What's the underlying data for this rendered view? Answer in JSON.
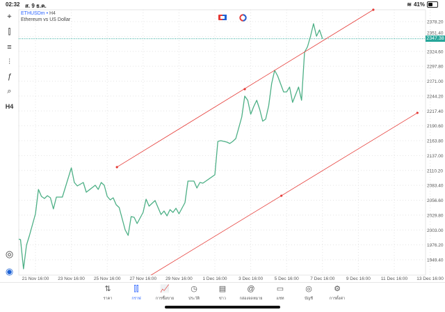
{
  "status_bar": {
    "time": "02:32",
    "date": "ส. 9 ธ.ค.",
    "battery": "41%",
    "battery_level": 0.41
  },
  "legend": {
    "symbol": "ETHUSDm",
    "separator": "•",
    "timeframe": "H4",
    "description": "Ethereum vs US Dollar"
  },
  "toolbar": {
    "items": [
      {
        "icon": "crosshair-icon",
        "glyph": "⌖"
      },
      {
        "icon": "candlestick-icon",
        "glyph": "⫿"
      },
      {
        "icon": "indicators-icon",
        "glyph": "≡"
      },
      {
        "icon": "settings-sliders-icon",
        "glyph": "⫶"
      },
      {
        "icon": "function-icon",
        "glyph": "ƒ"
      },
      {
        "icon": "objects-icon",
        "glyph": "⌕"
      },
      {
        "icon": "timeframe-icon",
        "glyph": "H4"
      }
    ],
    "bottom_items": [
      {
        "icon": "trade-zoom-icon",
        "glyph": "◎"
      },
      {
        "icon": "app-logo-icon",
        "glyph": "◉"
      }
    ]
  },
  "colors": {
    "line": "#4caf85",
    "trendline": "#e53935",
    "accent": "#2962ff",
    "price_tag": "#26a69a",
    "grid": "#e4e4e4"
  },
  "chart_data": {
    "type": "line",
    "symbol": "ETHUSDm",
    "timeframe": "H4",
    "ylim": [
      1930,
      2395
    ],
    "grid": true,
    "y_ticks": [
      "2378.20",
      "2351.40",
      "2324.60",
      "2297.80",
      "2271.00",
      "2244.20",
      "2217.40",
      "2190.60",
      "2163.80",
      "2137.00",
      "2110.20",
      "2083.40",
      "2056.60",
      "2029.80",
      "2003.00",
      "1976.20",
      "1949.40"
    ],
    "x_ticks": [
      "21 Nov 16:00",
      "23 Nov 16:00",
      "25 Nov 16:00",
      "27 Nov 16:00",
      "29 Nov 16:00",
      "1 Dec 16:00",
      "3 Dec 16:00",
      "5 Dec 16:00",
      "7 Dec 16:00",
      "9 Dec 16:00",
      "11 Dec 16:00",
      "13 Dec 16:00"
    ],
    "current_price": "2347.38",
    "points": [
      [
        "20 Nov 16:00",
        1987.0
      ],
      [
        "20 Nov 20:00",
        1985.8
      ],
      [
        "21 Nov 00:00",
        1933.1
      ],
      [
        "21 Nov 04:00",
        1975.7
      ],
      [
        "21 Nov 08:00",
        1993.3
      ],
      [
        "21 Nov 16:00",
        2032.2
      ],
      [
        "21 Nov 20:00",
        2076.0
      ],
      [
        "22 Nov 00:00",
        2063.5
      ],
      [
        "22 Nov 04:00",
        2059.7
      ],
      [
        "22 Nov 08:00",
        2064.8
      ],
      [
        "22 Nov 12:00",
        2061.0
      ],
      [
        "22 Nov 16:00",
        2040.9
      ],
      [
        "22 Nov 20:00",
        2062.2
      ],
      [
        "23 Nov 04:00",
        2062.2
      ],
      [
        "23 Nov 16:00",
        2114.9
      ],
      [
        "23 Nov 20:00",
        2088.6
      ],
      [
        "24 Nov 00:00",
        2082.3
      ],
      [
        "24 Nov 08:00",
        2088.6
      ],
      [
        "24 Nov 12:00",
        2071.0
      ],
      [
        "25 Nov 00:00",
        2083.6
      ],
      [
        "25 Nov 04:00",
        2076.0
      ],
      [
        "25 Nov 08:00",
        2088.6
      ],
      [
        "25 Nov 12:00",
        2083.6
      ],
      [
        "25 Nov 16:00",
        2063.5
      ],
      [
        "25 Nov 20:00",
        2057.2
      ],
      [
        "26 Nov 00:00",
        2061.0
      ],
      [
        "26 Nov 04:00",
        2048.5
      ],
      [
        "26 Nov 08:00",
        2043.4
      ],
      [
        "26 Nov 16:00",
        2003.3
      ],
      [
        "26 Nov 20:00",
        1993.3
      ],
      [
        "27 Nov 00:00",
        2027.1
      ],
      [
        "27 Nov 04:00",
        2025.9
      ],
      [
        "27 Nov 08:00",
        2014.6
      ],
      [
        "27 Nov 16:00",
        2034.7
      ],
      [
        "27 Nov 20:00",
        2058.5
      ],
      [
        "28 Nov 00:00",
        2046.0
      ],
      [
        "28 Nov 08:00",
        2056.0
      ],
      [
        "28 Nov 16:00",
        2030.9
      ],
      [
        "28 Nov 20:00",
        2037.2
      ],
      [
        "29 Nov 00:00",
        2028.4
      ],
      [
        "29 Nov 04:00",
        2039.7
      ],
      [
        "29 Nov 08:00",
        2034.7
      ],
      [
        "29 Nov 12:00",
        2042.2
      ],
      [
        "29 Nov 16:00",
        2032.2
      ],
      [
        "30 Nov 00:00",
        2052.2
      ],
      [
        "30 Nov 04:00",
        2091.1
      ],
      [
        "30 Nov 12:00",
        2091.1
      ],
      [
        "30 Nov 16:00",
        2078.5
      ],
      [
        "30 Nov 20:00",
        2088.6
      ],
      [
        "1 Dec 00:00",
        2087.3
      ],
      [
        "1 Dec 16:00",
        2102.4
      ],
      [
        "1 Dec 20:00",
        2162.5
      ],
      [
        "2 Dec 00:00",
        2163.8
      ],
      [
        "2 Dec 08:00",
        2161.3
      ],
      [
        "2 Dec 12:00",
        2158.8
      ],
      [
        "2 Dec 16:00",
        2162.5
      ],
      [
        "2 Dec 20:00",
        2167.6
      ],
      [
        "3 Dec 04:00",
        2206.4
      ],
      [
        "3 Dec 08:00",
        2244.0
      ],
      [
        "3 Dec 12:00",
        2236.5
      ],
      [
        "3 Dec 16:00",
        2211.4
      ],
      [
        "3 Dec 20:00",
        2225.2
      ],
      [
        "4 Dec 00:00",
        2236.5
      ],
      [
        "4 Dec 04:00",
        2220.2
      ],
      [
        "4 Dec 08:00",
        2198.9
      ],
      [
        "4 Dec 12:00",
        2202.7
      ],
      [
        "4 Dec 16:00",
        2226.5
      ],
      [
        "4 Dec 20:00",
        2266.6
      ],
      [
        "5 Dec 00:00",
        2290.4
      ],
      [
        "5 Dec 04:00",
        2280.4
      ],
      [
        "5 Dec 12:00",
        2251.6
      ],
      [
        "5 Dec 16:00",
        2251.6
      ],
      [
        "5 Dec 20:00",
        2260.3
      ],
      [
        "6 Dec 00:00",
        2232.8
      ],
      [
        "6 Dec 08:00",
        2260.3
      ],
      [
        "6 Dec 12:00",
        2236.5
      ],
      [
        "6 Dec 16:00",
        2323.0
      ],
      [
        "6 Dec 20:00",
        2333.1
      ],
      [
        "7 Dec 00:00",
        2351.9
      ],
      [
        "7 Dec 04:00",
        2374.4
      ],
      [
        "7 Dec 08:00",
        2351.9
      ],
      [
        "7 Dec 12:00",
        2363.2
      ],
      [
        "7 Dec 16:00",
        2347.38
      ]
    ],
    "trendlines": [
      {
        "anchors": [
          [
            "26 Nov 05:00",
            2116.2
          ],
          [
            "3 Dec 08:00",
            2256.6
          ],
          [
            "10 Dec 12:00",
            2399.5
          ]
        ],
        "extend_left": false
      },
      {
        "anchors": [
          [
            "5 Dec 09:00",
            2064.7
          ],
          [
            "12 Dec 23:00",
            2213.9
          ]
        ],
        "extend_left": true
      }
    ]
  },
  "bottom_nav": {
    "items": [
      {
        "label": "ราคา",
        "icon": "quotes-icon",
        "glyph": "⇅",
        "active": false
      },
      {
        "label": "กราฟ",
        "icon": "chart-icon",
        "glyph": "⫿⫿",
        "active": true
      },
      {
        "label": "การซื้อขาย",
        "icon": "trade-icon",
        "glyph": "📈",
        "active": false
      },
      {
        "label": "ประวัติ",
        "icon": "history-icon",
        "glyph": "◷",
        "active": false
      },
      {
        "label": "ข่าว",
        "icon": "news-icon",
        "glyph": "▤",
        "active": false
      },
      {
        "label": "กล่องจดหมาย",
        "icon": "mailbox-icon",
        "glyph": "@",
        "active": false
      },
      {
        "label": "แชท",
        "icon": "chat-icon",
        "glyph": "▭",
        "active": false
      },
      {
        "label": "บัญชี",
        "icon": "account-icon",
        "glyph": "◎",
        "active": false
      },
      {
        "label": "การตั้งค่า",
        "icon": "settings-icon",
        "glyph": "⚙",
        "active": false
      }
    ]
  }
}
